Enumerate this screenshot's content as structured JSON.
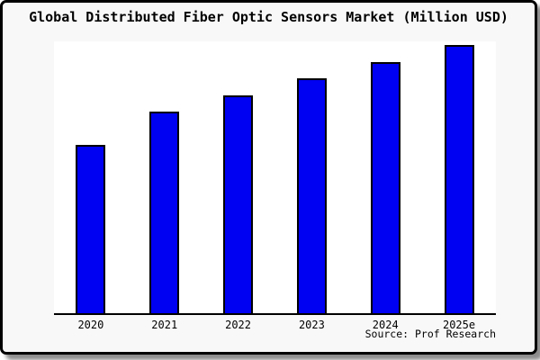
{
  "card": {
    "title": "Global Distributed Fiber Optic Sensors Market (Million USD)",
    "source": "Source: Prof Research"
  },
  "colors": {
    "bar_fill": "#0000f2",
    "bar_border": "#000000",
    "axis": "#000000",
    "card_background": "#f8f8f8",
    "plot_background": "#ffffff",
    "card_border": "#000000"
  },
  "chart_data": {
    "type": "bar",
    "title": "Global Distributed Fiber Optic Sensors Market (Million USD)",
    "categories": [
      "2020",
      "2021",
      "2022",
      "2023",
      "2024",
      "2025e"
    ],
    "values": [
      188,
      225,
      244,
      263,
      281,
      300
    ],
    "note": "y-axis has no ticks or labels; values are relative bar heights estimated in pixels against a plot height of 304",
    "xlabel": "",
    "ylabel": "",
    "ylim": [
      0,
      304
    ],
    "grid": false,
    "legend": false,
    "source_credit": "Source: Prof Research"
  }
}
